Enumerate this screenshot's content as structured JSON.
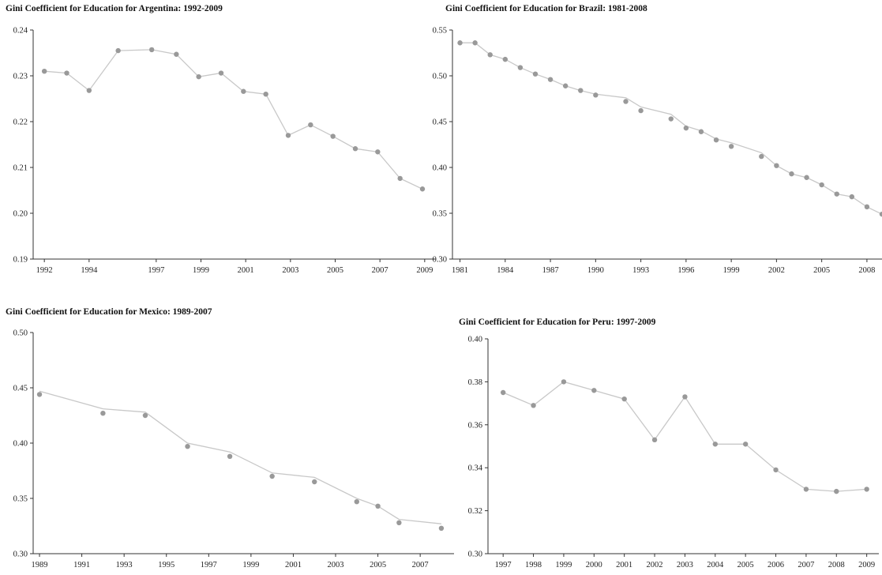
{
  "chart_data": [
    {
      "type": "line",
      "title": "Gini Coefficient for Education for Argentina: 1992-2009",
      "xlabel": "",
      "ylabel": "",
      "xlim": [
        1991.5,
        2009.5
      ],
      "ylim": [
        0.19,
        0.24
      ],
      "y_ticks": [
        "0.24",
        "0.23",
        "0.22",
        "0.21",
        "0.20",
        "0.19"
      ],
      "x_ticks": [
        1992,
        1994,
        1997,
        1999,
        2001,
        2003,
        2005,
        2007,
        2009
      ],
      "x_tick_labels": [
        "1992",
        "1994",
        "1997",
        "1999",
        "2001",
        "2003",
        "2005",
        "2007",
        "2009"
      ],
      "grid": false,
      "line_points": {
        "x": [
          1992,
          1993,
          1994,
          1995.3,
          1996.8,
          1997.9,
          1998.9,
          1999.9,
          2000.9,
          2001.9,
          2002.9,
          2003.9,
          2004.9,
          2005.9,
          2006.9,
          2007.9,
          2008.9
        ],
        "y": [
          0.231,
          0.2306,
          0.2268,
          0.2355,
          0.2357,
          0.2347,
          0.2298,
          0.2306,
          0.2266,
          0.226,
          0.217,
          0.2193,
          0.2168,
          0.2141,
          0.2134,
          0.2076,
          0.2053
        ]
      },
      "series": [
        {
          "name": "",
          "x": [
            1992,
            1993,
            1994,
            1995.3,
            1996.8,
            1997.9,
            1998.9,
            1999.9,
            2000.9,
            2001.9,
            2002.9,
            2003.9,
            2004.9,
            2005.9,
            2006.9,
            2007.9,
            2008.9
          ],
          "values": [
            0.231,
            0.2306,
            0.2268,
            0.2355,
            0.2357,
            0.2347,
            0.2298,
            0.2306,
            0.2266,
            0.226,
            0.217,
            0.2193,
            0.2168,
            0.2141,
            0.2134,
            0.2076,
            0.2053
          ]
        }
      ]
    },
    {
      "type": "line",
      "title": "Gini Coefficient for Education for Brazil: 1981-2008",
      "xlabel": "",
      "ylabel": "",
      "xlim": [
        1980.5,
        2009
      ],
      "ylim": [
        0.3,
        0.55
      ],
      "y_ticks": [
        "0.55",
        "0.50",
        "0.45",
        "0.40",
        "0.35",
        "0.30"
      ],
      "x_ticks": [
        1981,
        1984,
        1987,
        1990,
        1993,
        1996,
        1999,
        2002,
        2005,
        2008
      ],
      "x_tick_labels": [
        "1981",
        "1984",
        "1987",
        "1990",
        "1993",
        "1996",
        "1999",
        "2002",
        "2005",
        "2008"
      ],
      "grid": false,
      "line_points": {
        "x": [
          1981,
          1982,
          1983,
          1984,
          1985,
          1986,
          1987,
          1988,
          1989,
          1990,
          1992,
          1993,
          1995,
          1996,
          1997,
          1998,
          1999,
          2001,
          2002,
          2003,
          2004,
          2005,
          2006,
          2007,
          2008,
          2009
        ],
        "y": [
          0.536,
          0.536,
          0.523,
          0.518,
          0.509,
          0.502,
          0.496,
          0.489,
          0.484,
          0.48,
          0.476,
          0.466,
          0.458,
          0.445,
          0.44,
          0.431,
          0.427,
          0.416,
          0.402,
          0.393,
          0.389,
          0.381,
          0.371,
          0.368,
          0.357,
          0.349
        ]
      },
      "series": [
        {
          "name": "",
          "x": [
            1981,
            1982,
            1983,
            1984,
            1985,
            1986,
            1987,
            1988,
            1989,
            1990,
            1992,
            1993,
            1995,
            1996,
            1997,
            1998,
            1999,
            2001,
            2002,
            2003,
            2004,
            2005,
            2006,
            2007,
            2008,
            2009
          ],
          "values": [
            0.536,
            0.536,
            0.523,
            0.518,
            0.509,
            0.502,
            0.496,
            0.489,
            0.484,
            0.479,
            0.472,
            0.462,
            0.453,
            0.443,
            0.439,
            0.43,
            0.423,
            0.412,
            0.402,
            0.393,
            0.389,
            0.381,
            0.371,
            0.368,
            0.357,
            0.349
          ]
        }
      ]
    },
    {
      "type": "line",
      "title": "Gini Coefficient for Education for Mexico: 1989-2007",
      "xlabel": "",
      "ylabel": "",
      "xlim": [
        1988.7,
        2008.6
      ],
      "ylim": [
        0.3,
        0.5
      ],
      "y_ticks": [
        "0.50",
        "0.45",
        "0.40",
        "0.35",
        "0.30"
      ],
      "x_ticks": [
        1989,
        1991,
        1993,
        1995,
        1997,
        1999,
        2001,
        2003,
        2005,
        2007
      ],
      "x_tick_labels": [
        "1989",
        "1991",
        "1993",
        "1995",
        "1997",
        "1999",
        "2001",
        "2003",
        "2005",
        "2007"
      ],
      "grid": false,
      "line_points": {
        "x": [
          1989,
          1992,
          1994,
          1996,
          1998,
          2000,
          2002,
          2004,
          2005,
          2006,
          2008
        ],
        "y": [
          0.447,
          0.431,
          0.428,
          0.4,
          0.392,
          0.373,
          0.369,
          0.35,
          0.343,
          0.331,
          0.327
        ]
      },
      "series": [
        {
          "name": "",
          "x": [
            1989,
            1992,
            1994,
            1996,
            1998,
            2000,
            2002,
            2004,
            2005,
            2006,
            2008
          ],
          "values": [
            0.444,
            0.427,
            0.425,
            0.397,
            0.388,
            0.37,
            0.365,
            0.347,
            0.343,
            0.328,
            0.323
          ]
        }
      ]
    },
    {
      "type": "line",
      "title": "Gini Coefficient for Education for Peru: 1997-2009",
      "xlabel": "",
      "ylabel": "",
      "xlim": [
        1996.5,
        2009.4
      ],
      "ylim": [
        0.3,
        0.4
      ],
      "y_ticks": [
        "0.40",
        "0.38",
        "0.36",
        "0.34",
        "0.32",
        "0.30"
      ],
      "x_ticks": [
        1997,
        1998,
        1999,
        2000,
        2001,
        2002,
        2003,
        2004,
        2005,
        2006,
        2007,
        2008,
        2009
      ],
      "x_tick_labels": [
        "1997",
        "1998",
        "1999",
        "2000",
        "2001",
        "2002",
        "2003",
        "2004",
        "2005",
        "2006",
        "2007",
        "2008",
        "2009"
      ],
      "grid": false,
      "line_points": {
        "x": [
          1997,
          1998,
          1999,
          2000,
          2001,
          2002,
          2003,
          2004,
          2005,
          2006,
          2007,
          2008,
          2009
        ],
        "y": [
          0.375,
          0.369,
          0.38,
          0.376,
          0.372,
          0.353,
          0.373,
          0.351,
          0.351,
          0.339,
          0.33,
          0.329,
          0.33
        ]
      },
      "series": [
        {
          "name": "",
          "x": [
            1997,
            1998,
            1999,
            2000,
            2001,
            2002,
            2003,
            2004,
            2005,
            2006,
            2007,
            2008,
            2009
          ],
          "values": [
            0.375,
            0.369,
            0.38,
            0.376,
            0.372,
            0.353,
            0.373,
            0.351,
            0.351,
            0.339,
            0.33,
            0.329,
            0.33
          ]
        }
      ]
    }
  ],
  "colors": {
    "line": "#c8c8c8",
    "marker": "#999999",
    "axis": "#333333"
  }
}
